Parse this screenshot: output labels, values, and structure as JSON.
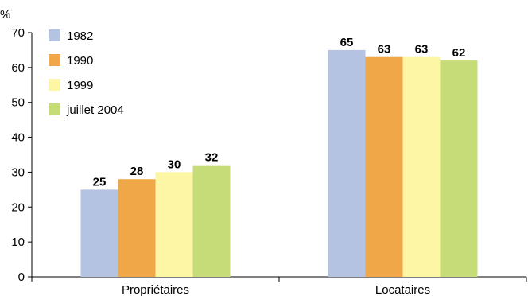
{
  "chart_data": {
    "type": "bar",
    "unit_label": "%",
    "categories": [
      "Propriétaires",
      "Locataires"
    ],
    "series": [
      {
        "name": "1982",
        "color": "#b4c3e1",
        "values": [
          25,
          65
        ]
      },
      {
        "name": "1990",
        "color": "#f0a747",
        "values": [
          28,
          63
        ]
      },
      {
        "name": "1999",
        "color": "#fdf6a5",
        "values": [
          30,
          63
        ]
      },
      {
        "name": "juillet 2004",
        "color": "#c5dc78",
        "values": [
          32,
          62
        ]
      }
    ],
    "data_labels": [
      [
        "25",
        "28",
        "30",
        "32"
      ],
      [
        "65",
        "63",
        "63",
        "62"
      ]
    ],
    "y_ticks": [
      "0",
      "10",
      "20",
      "30",
      "40",
      "50",
      "60",
      "70"
    ],
    "ylim": [
      0,
      70
    ],
    "grid": false,
    "legend_position": "top-left"
  }
}
